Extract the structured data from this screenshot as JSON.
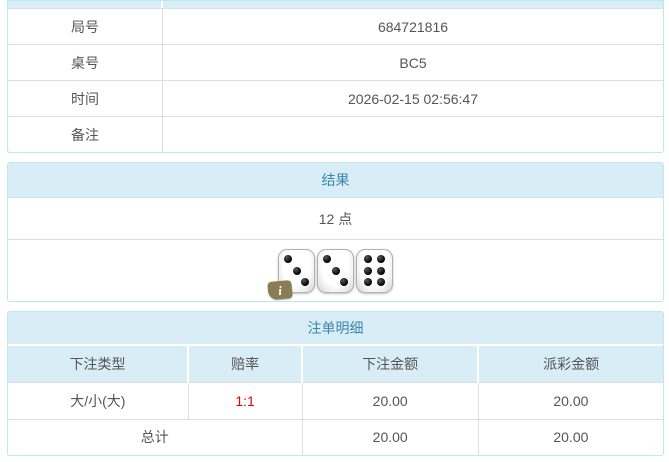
{
  "info_table": {
    "rows": [
      {
        "label": "局号",
        "value": "684721816"
      },
      {
        "label": "桌号",
        "value": "BC5"
      },
      {
        "label": "时间",
        "value": "2026-02-15 02:56:47"
      },
      {
        "label": "备注",
        "value": ""
      }
    ]
  },
  "result": {
    "title": "结果",
    "points": "12 点",
    "dice": [
      3,
      3,
      6
    ],
    "info_badge": "i"
  },
  "bets": {
    "title": "注单明细",
    "columns": [
      "下注类型",
      "赔率",
      "下注金额",
      "派彩金额"
    ],
    "rows": [
      {
        "type": "大/小(大)",
        "odds": "1:1",
        "amount": "20.00",
        "payout": "20.00"
      }
    ],
    "total": {
      "label": "总计",
      "amount": "20.00",
      "payout": "20.00"
    }
  },
  "colors": {
    "band_bg": "#d9edf7",
    "band_text": "#3a87ad",
    "card_border": "#bce8f1",
    "grid_line": "#dddddd",
    "body_text": "#555555",
    "odds_red": "#e60000"
  }
}
